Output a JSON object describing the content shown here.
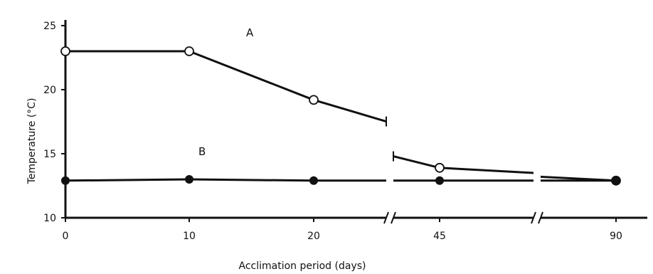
{
  "chart_data": {
    "type": "line",
    "title": "",
    "xlabel": "Acclimation period (days)",
    "ylabel": "Temperature (°C)",
    "ylim": [
      10,
      25
    ],
    "x_ticks": [
      "0",
      "10",
      "20",
      "45",
      "90"
    ],
    "y_ticks": [
      "10",
      "15",
      "20",
      "25"
    ],
    "x_axis_breaks": true,
    "grid": false,
    "legend": "none",
    "series": [
      {
        "name": "A",
        "marker": "open-circle",
        "points": [
          {
            "x": 0,
            "y": 23
          },
          {
            "x": 10,
            "y": 23
          },
          {
            "x": 20,
            "y": 19.2
          },
          {
            "x": 45,
            "y": 13.9
          },
          {
            "x": 90,
            "y": 12.9
          }
        ]
      },
      {
        "name": "B",
        "marker": "filled-circle",
        "points": [
          {
            "x": 0,
            "y": 12.9
          },
          {
            "x": 10,
            "y": 13
          },
          {
            "x": 20,
            "y": 12.9
          },
          {
            "x": 45,
            "y": 12.9
          },
          {
            "x": 90,
            "y": 12.9
          }
        ]
      }
    ]
  }
}
